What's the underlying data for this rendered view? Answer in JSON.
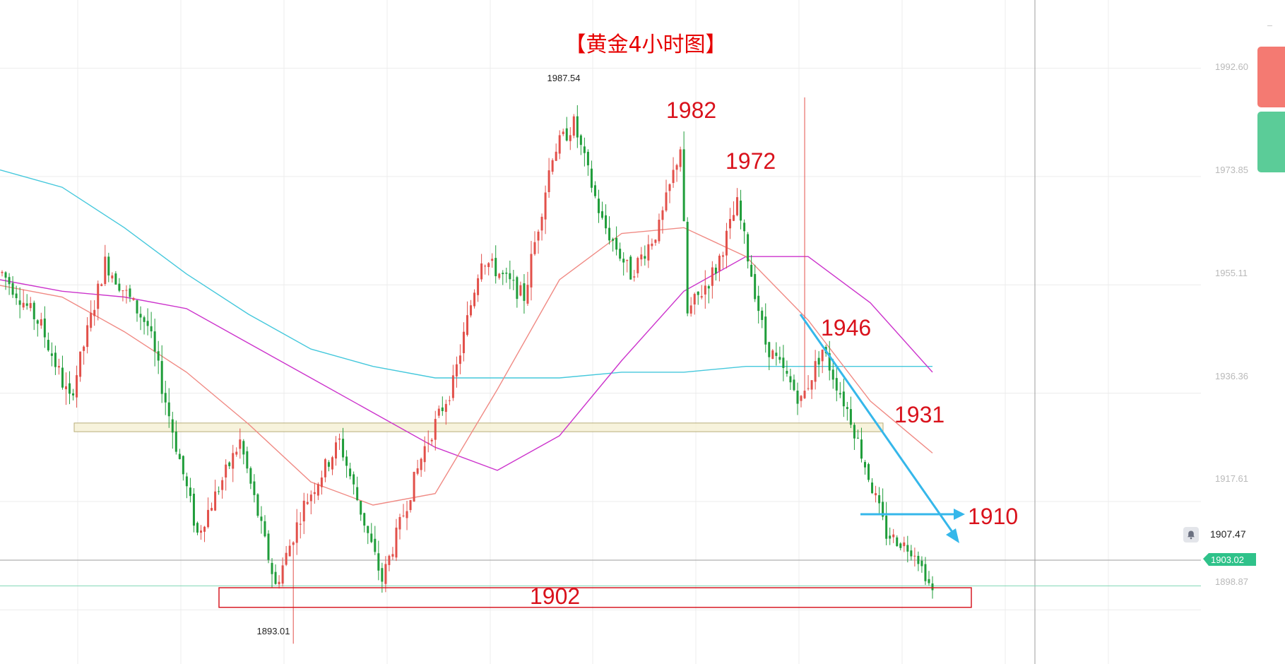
{
  "title": "【黄金4小时图】",
  "colors": {
    "title": "#e60000",
    "annotation": "#d9121c",
    "bull": "#e2504a",
    "bear": "#1f9d3a",
    "ma_cyan": "#45c8dc",
    "ma_magenta": "#cc33cc",
    "ma_pink": "#f08a84",
    "arrow": "#35b7ea",
    "support_zone_fill": "#f6f1d6",
    "support_zone_border": "#b8ad7a",
    "bottom_box": "#d61a24",
    "current_price_bg": "#2fc28a",
    "buy_button": "#f47a72",
    "sell_button": "#5bcc98"
  },
  "price_axis": {
    "ticks": [
      "1992.60",
      "1973.85",
      "1955.11",
      "1936.36",
      "1917.61",
      "1898.87"
    ],
    "crosshair_price": "1907.47",
    "current_price": "1903.02"
  },
  "chart_data": {
    "type": "candlestick",
    "title": "【黄金4小时图】",
    "ylim": [
      1889.5,
      2004.4
    ],
    "y_ticks": [
      1992.6,
      1973.85,
      1955.11,
      1936.36,
      1917.61,
      1898.87
    ],
    "high_label": "1987.54",
    "low_label": "1893.01",
    "annotations": [
      "1982",
      "1972",
      "1946",
      "1931",
      "1910",
      "1902"
    ],
    "support_zone": [
      1929.7,
      1931.2
    ],
    "support_box": [
      1899.3,
      1902.7
    ],
    "segments": [
      {
        "n": 12,
        "start": 1958,
        "end": 1948,
        "amp": 3.0
      },
      {
        "n": 8,
        "start": 1948,
        "end": 1935,
        "amp": 3.5
      },
      {
        "n": 10,
        "start": 1935,
        "end": 1959,
        "amp": 3.0
      },
      {
        "n": 12,
        "start": 1959,
        "end": 1948,
        "amp": 3.0
      },
      {
        "n": 14,
        "start": 1948,
        "end": 1912,
        "amp": 3.5
      },
      {
        "n": 12,
        "start": 1912,
        "end": 1928,
        "amp": 3.0
      },
      {
        "n": 10,
        "start": 1928,
        "end": 1903,
        "amp": 3.0
      },
      {
        "n": 8,
        "start": 1903,
        "end": 1917,
        "amp": 3.0
      },
      {
        "n": 10,
        "start": 1917,
        "end": 1928,
        "amp": 3.0
      },
      {
        "n": 12,
        "start": 1928,
        "end": 1904,
        "amp": 3.0
      },
      {
        "n": 12,
        "start": 1904,
        "end": 1927,
        "amp": 3.0
      },
      {
        "n": 8,
        "start": 1927,
        "end": 1938,
        "amp": 3.0
      },
      {
        "n": 8,
        "start": 1938,
        "end": 1960,
        "amp": 3.0
      },
      {
        "n": 12,
        "start": 1960,
        "end": 1953,
        "amp": 3.0
      },
      {
        "n": 8,
        "start": 1953,
        "end": 1978,
        "amp": 3.5
      },
      {
        "n": 6,
        "start": 1978,
        "end": 1983,
        "amp": 3.0
      },
      {
        "n": 8,
        "start": 1983,
        "end": 1966,
        "amp": 3.0
      },
      {
        "n": 8,
        "start": 1966,
        "end": 1957,
        "amp": 3.0
      },
      {
        "n": 8,
        "start": 1957,
        "end": 1965,
        "amp": 3.0
      },
      {
        "n": 6,
        "start": 1965,
        "end": 1979,
        "amp": 3.0
      },
      {
        "n": 2,
        "start": 1979,
        "end": 1950,
        "amp": 4.0
      },
      {
        "n": 8,
        "start": 1950,
        "end": 1958,
        "amp": 3.5
      },
      {
        "n": 6,
        "start": 1958,
        "end": 1969,
        "amp": 3.0
      },
      {
        "n": 8,
        "start": 1969,
        "end": 1945,
        "amp": 3.0
      },
      {
        "n": 10,
        "start": 1945,
        "end": 1935,
        "amp": 3.0
      },
      {
        "n": 6,
        "start": 1935,
        "end": 1944,
        "amp": 3.0
      },
      {
        "n": 8,
        "start": 1944,
        "end": 1932,
        "amp": 3.0
      },
      {
        "n": 10,
        "start": 1932,
        "end": 1912,
        "amp": 3.0
      },
      {
        "n": 8,
        "start": 1912,
        "end": 1909,
        "amp": 2.5
      },
      {
        "n": 5,
        "start": 1909,
        "end": 1902,
        "amp": 2.0
      }
    ],
    "ma_series": [
      {
        "color_key": "ma_cyan",
        "values": [
          1975,
          1972,
          1965,
          1957,
          1950,
          1944,
          1941,
          1939,
          1939,
          1939,
          1940,
          1940,
          1941,
          1941,
          1941,
          1941
        ]
      },
      {
        "color_key": "ma_magenta",
        "values": [
          1956,
          1954,
          1953,
          1951,
          1945,
          1939,
          1933,
          1927,
          1923,
          1929,
          1942,
          1954,
          1960,
          1960,
          1952,
          1940
        ]
      },
      {
        "color_key": "ma_pink",
        "values": [
          1955,
          1953,
          1947,
          1940,
          1931,
          1921,
          1917,
          1919,
          1937,
          1956,
          1964,
          1965,
          1960,
          1949,
          1935,
          1926
        ]
      }
    ]
  }
}
